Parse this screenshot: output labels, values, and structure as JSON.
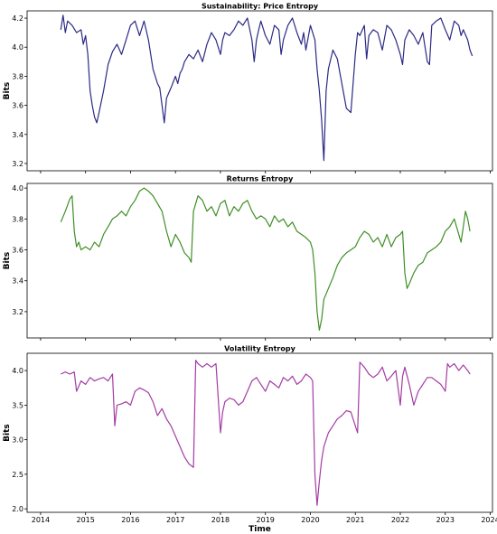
{
  "chart_data": [
    {
      "type": "line",
      "title": "Sustainability: Price Entropy",
      "ylabel": "Bits",
      "xlabel": "",
      "ylim": [
        3.15,
        4.25
      ],
      "yticks": [
        3.2,
        3.4,
        3.6,
        3.8,
        4.0,
        4.2
      ],
      "ytick_labels": [
        "3.2",
        "3.4",
        "3.6",
        "3.8",
        "4.0",
        "4.2"
      ],
      "xlim": [
        2013.7,
        2024.05
      ],
      "grid": false,
      "color": "#2b2a85",
      "x": [
        2014.45,
        2014.5,
        2014.55,
        2014.6,
        2014.7,
        2014.8,
        2014.9,
        2014.95,
        2015.0,
        2015.05,
        2015.1,
        2015.15,
        2015.2,
        2015.25,
        2015.3,
        2015.4,
        2015.5,
        2015.6,
        2015.7,
        2015.8,
        2015.9,
        2016.0,
        2016.1,
        2016.2,
        2016.3,
        2016.4,
        2016.45,
        2016.5,
        2016.55,
        2016.6,
        2016.65,
        2016.7,
        2016.75,
        2016.8,
        2016.9,
        2017.0,
        2017.05,
        2017.1,
        2017.15,
        2017.2,
        2017.3,
        2017.4,
        2017.5,
        2017.6,
        2017.7,
        2017.8,
        2017.9,
        2018.0,
        2018.05,
        2018.1,
        2018.2,
        2018.3,
        2018.4,
        2018.5,
        2018.6,
        2018.7,
        2018.75,
        2018.8,
        2018.85,
        2018.9,
        2019.0,
        2019.1,
        2019.2,
        2019.3,
        2019.35,
        2019.4,
        2019.5,
        2019.6,
        2019.7,
        2019.8,
        2019.85,
        2019.9,
        2020.0,
        2020.1,
        2020.15,
        2020.2,
        2020.25,
        2020.3,
        2020.35,
        2020.4,
        2020.5,
        2020.6,
        2020.7,
        2020.8,
        2020.9,
        2021.0,
        2021.05,
        2021.1,
        2021.2,
        2021.25,
        2021.3,
        2021.4,
        2021.5,
        2021.6,
        2021.7,
        2021.8,
        2021.9,
        2022.0,
        2022.05,
        2022.1,
        2022.2,
        2022.3,
        2022.4,
        2022.5,
        2022.6,
        2022.65,
        2022.7,
        2022.8,
        2022.9,
        2023.0,
        2023.1,
        2023.2,
        2023.3,
        2023.35,
        2023.4,
        2023.5,
        2023.55,
        2023.6
      ],
      "y": [
        4.12,
        4.22,
        4.1,
        4.18,
        4.15,
        4.1,
        4.12,
        4.02,
        4.08,
        3.95,
        3.7,
        3.6,
        3.52,
        3.48,
        3.55,
        3.7,
        3.88,
        3.97,
        4.02,
        3.95,
        4.05,
        4.15,
        4.18,
        4.08,
        4.18,
        4.05,
        3.95,
        3.85,
        3.8,
        3.75,
        3.72,
        3.6,
        3.48,
        3.65,
        3.72,
        3.8,
        3.75,
        3.82,
        3.85,
        3.9,
        3.95,
        3.92,
        3.98,
        3.9,
        4.02,
        4.1,
        4.05,
        3.95,
        4.05,
        4.1,
        4.08,
        4.12,
        4.18,
        4.15,
        4.2,
        4.05,
        3.9,
        4.05,
        4.12,
        4.18,
        4.08,
        4.02,
        4.15,
        4.12,
        3.95,
        4.05,
        4.15,
        4.2,
        4.1,
        4.02,
        4.1,
        3.98,
        4.15,
        4.05,
        3.85,
        3.7,
        3.5,
        3.22,
        3.7,
        3.85,
        3.98,
        3.92,
        3.75,
        3.58,
        3.55,
        3.95,
        4.1,
        4.08,
        4.15,
        3.92,
        4.08,
        4.12,
        4.1,
        3.98,
        4.15,
        4.12,
        4.05,
        3.95,
        3.88,
        4.05,
        4.12,
        4.08,
        4.02,
        4.1,
        3.9,
        3.88,
        4.15,
        4.18,
        4.2,
        4.12,
        4.05,
        4.18,
        4.15,
        4.08,
        4.12,
        4.05,
        3.98,
        3.94
      ]
    },
    {
      "type": "line",
      "title": "Returns Entropy",
      "ylabel": "Bits",
      "xlabel": "",
      "ylim": [
        3.03,
        4.03
      ],
      "yticks": [
        3.2,
        3.4,
        3.6,
        3.8,
        4.0
      ],
      "ytick_labels": [
        "3.2",
        "3.4",
        "3.6",
        "3.8",
        "4.0"
      ],
      "xlim": [
        2013.7,
        2024.05
      ],
      "grid": false,
      "color": "#3f8f26",
      "x": [
        2014.45,
        2014.55,
        2014.65,
        2014.7,
        2014.75,
        2014.8,
        2014.85,
        2014.9,
        2015.0,
        2015.1,
        2015.2,
        2015.3,
        2015.4,
        2015.5,
        2015.6,
        2015.7,
        2015.8,
        2015.9,
        2016.0,
        2016.1,
        2016.2,
        2016.3,
        2016.4,
        2016.5,
        2016.6,
        2016.7,
        2016.8,
        2016.9,
        2017.0,
        2017.1,
        2017.2,
        2017.3,
        2017.35,
        2017.4,
        2017.5,
        2017.6,
        2017.7,
        2017.8,
        2017.9,
        2018.0,
        2018.1,
        2018.2,
        2018.3,
        2018.4,
        2018.5,
        2018.6,
        2018.7,
        2018.8,
        2018.9,
        2019.0,
        2019.1,
        2019.2,
        2019.3,
        2019.4,
        2019.5,
        2019.6,
        2019.7,
        2019.8,
        2019.9,
        2020.0,
        2020.05,
        2020.1,
        2020.15,
        2020.2,
        2020.25,
        2020.3,
        2020.4,
        2020.5,
        2020.6,
        2020.7,
        2020.8,
        2020.9,
        2021.0,
        2021.1,
        2021.2,
        2021.3,
        2021.4,
        2021.5,
        2021.6,
        2021.7,
        2021.8,
        2021.9,
        2022.0,
        2022.05,
        2022.1,
        2022.15,
        2022.2,
        2022.3,
        2022.4,
        2022.5,
        2022.6,
        2022.7,
        2022.8,
        2022.9,
        2023.0,
        2023.1,
        2023.2,
        2023.3,
        2023.35,
        2023.4,
        2023.45,
        2023.5,
        2023.55
      ],
      "y": [
        3.78,
        3.85,
        3.93,
        3.95,
        3.72,
        3.62,
        3.65,
        3.6,
        3.62,
        3.6,
        3.65,
        3.62,
        3.7,
        3.75,
        3.8,
        3.82,
        3.85,
        3.82,
        3.88,
        3.92,
        3.98,
        4.0,
        3.98,
        3.95,
        3.9,
        3.85,
        3.72,
        3.62,
        3.7,
        3.65,
        3.58,
        3.55,
        3.52,
        3.85,
        3.95,
        3.92,
        3.85,
        3.88,
        3.82,
        3.9,
        3.92,
        3.82,
        3.88,
        3.85,
        3.9,
        3.92,
        3.85,
        3.8,
        3.82,
        3.8,
        3.75,
        3.82,
        3.78,
        3.8,
        3.75,
        3.78,
        3.72,
        3.7,
        3.68,
        3.65,
        3.6,
        3.45,
        3.2,
        3.08,
        3.15,
        3.28,
        3.35,
        3.42,
        3.5,
        3.55,
        3.58,
        3.6,
        3.62,
        3.68,
        3.72,
        3.7,
        3.65,
        3.68,
        3.62,
        3.7,
        3.62,
        3.68,
        3.7,
        3.72,
        3.45,
        3.35,
        3.38,
        3.45,
        3.5,
        3.52,
        3.58,
        3.6,
        3.62,
        3.65,
        3.72,
        3.75,
        3.8,
        3.7,
        3.65,
        3.75,
        3.85,
        3.8,
        3.72
      ]
    },
    {
      "type": "line",
      "title": "Volatility Entropy",
      "ylabel": "Bits",
      "xlabel": "Time",
      "ylim": [
        1.95,
        4.25
      ],
      "yticks": [
        2.0,
        2.5,
        3.0,
        3.5,
        4.0
      ],
      "ytick_labels": [
        "2.0",
        "2.5",
        "3.0",
        "3.5",
        "4.0"
      ],
      "xlim": [
        2013.7,
        2024.05
      ],
      "xticks": [
        2014,
        2015,
        2016,
        2017,
        2018,
        2019,
        2020,
        2021,
        2022,
        2023,
        2024
      ],
      "xtick_labels": [
        "2014",
        "2015",
        "2016",
        "2017",
        "2018",
        "2019",
        "2020",
        "2021",
        "2022",
        "2023",
        "2024"
      ],
      "grid": false,
      "color": "#a33ca3",
      "x": [
        2014.45,
        2014.55,
        2014.65,
        2014.75,
        2014.8,
        2014.9,
        2015.0,
        2015.1,
        2015.2,
        2015.3,
        2015.4,
        2015.5,
        2015.6,
        2015.65,
        2015.7,
        2015.8,
        2015.9,
        2016.0,
        2016.1,
        2016.2,
        2016.3,
        2016.4,
        2016.5,
        2016.6,
        2016.7,
        2016.8,
        2016.9,
        2017.0,
        2017.1,
        2017.2,
        2017.3,
        2017.4,
        2017.45,
        2017.5,
        2017.6,
        2017.7,
        2017.8,
        2017.9,
        2018.0,
        2018.05,
        2018.1,
        2018.2,
        2018.3,
        2018.4,
        2018.5,
        2018.6,
        2018.7,
        2018.8,
        2018.9,
        2019.0,
        2019.1,
        2019.2,
        2019.3,
        2019.4,
        2019.5,
        2019.6,
        2019.7,
        2019.8,
        2019.9,
        2020.0,
        2020.05,
        2020.1,
        2020.15,
        2020.2,
        2020.25,
        2020.3,
        2020.4,
        2020.5,
        2020.6,
        2020.7,
        2020.8,
        2020.9,
        2021.0,
        2021.05,
        2021.1,
        2021.2,
        2021.3,
        2021.4,
        2021.5,
        2021.6,
        2021.7,
        2021.8,
        2021.9,
        2022.0,
        2022.05,
        2022.1,
        2022.2,
        2022.3,
        2022.4,
        2022.5,
        2022.6,
        2022.7,
        2022.8,
        2022.9,
        2023.0,
        2023.05,
        2023.1,
        2023.2,
        2023.3,
        2023.4,
        2023.5,
        2023.55
      ],
      "y": [
        3.95,
        3.98,
        3.95,
        3.98,
        3.7,
        3.85,
        3.8,
        3.9,
        3.85,
        3.88,
        3.9,
        3.85,
        3.95,
        3.2,
        3.5,
        3.52,
        3.55,
        3.5,
        3.7,
        3.75,
        3.72,
        3.68,
        3.55,
        3.35,
        3.45,
        3.3,
        3.2,
        3.05,
        2.9,
        2.75,
        2.65,
        2.6,
        4.15,
        4.1,
        4.05,
        4.1,
        4.05,
        4.1,
        3.1,
        3.4,
        3.55,
        3.6,
        3.58,
        3.5,
        3.55,
        3.7,
        3.85,
        3.9,
        3.8,
        3.7,
        3.85,
        3.8,
        3.75,
        3.9,
        3.85,
        3.92,
        3.8,
        3.85,
        3.95,
        3.9,
        3.85,
        2.5,
        2.05,
        2.4,
        2.7,
        2.9,
        3.1,
        3.2,
        3.3,
        3.35,
        3.42,
        3.4,
        3.2,
        3.1,
        4.12,
        4.05,
        3.95,
        3.9,
        3.95,
        4.05,
        3.85,
        3.92,
        4.0,
        3.5,
        3.92,
        4.05,
        3.8,
        3.5,
        3.7,
        3.8,
        3.9,
        3.9,
        3.85,
        3.8,
        3.7,
        4.1,
        4.05,
        4.1,
        4.0,
        4.08,
        4.0,
        3.95
      ]
    }
  ]
}
